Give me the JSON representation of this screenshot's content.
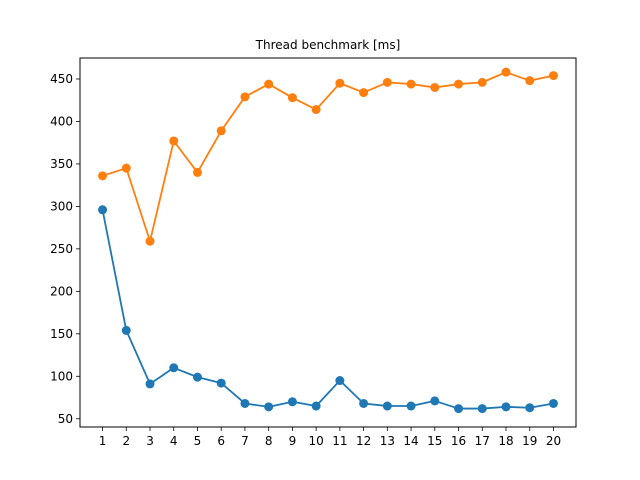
{
  "chart_data": {
    "type": "line",
    "title": "Thread benchmark [ms]",
    "xlabel": "",
    "ylabel": "",
    "x": [
      1,
      2,
      3,
      4,
      5,
      6,
      7,
      8,
      9,
      10,
      11,
      12,
      13,
      14,
      15,
      16,
      17,
      18,
      19,
      20
    ],
    "xlim": [
      0.05,
      20.95
    ],
    "ylim": [
      40.3,
      474.7
    ],
    "yticks": [
      50,
      100,
      150,
      200,
      250,
      300,
      350,
      400,
      450
    ],
    "grid": false,
    "legend": "none",
    "series": [
      {
        "color": "#1f77b4",
        "marker": "circle",
        "values": [
          296,
          154,
          91,
          110,
          99,
          92,
          68,
          64,
          70,
          65,
          95,
          68,
          65,
          65,
          71,
          62,
          62,
          64,
          63,
          68
        ]
      },
      {
        "color": "#ff7f0e",
        "marker": "circle",
        "values": [
          336,
          345,
          259,
          377,
          340,
          389,
          429,
          444,
          428,
          414,
          445,
          434,
          446,
          444,
          440,
          444,
          446,
          458,
          448,
          454
        ]
      }
    ]
  }
}
